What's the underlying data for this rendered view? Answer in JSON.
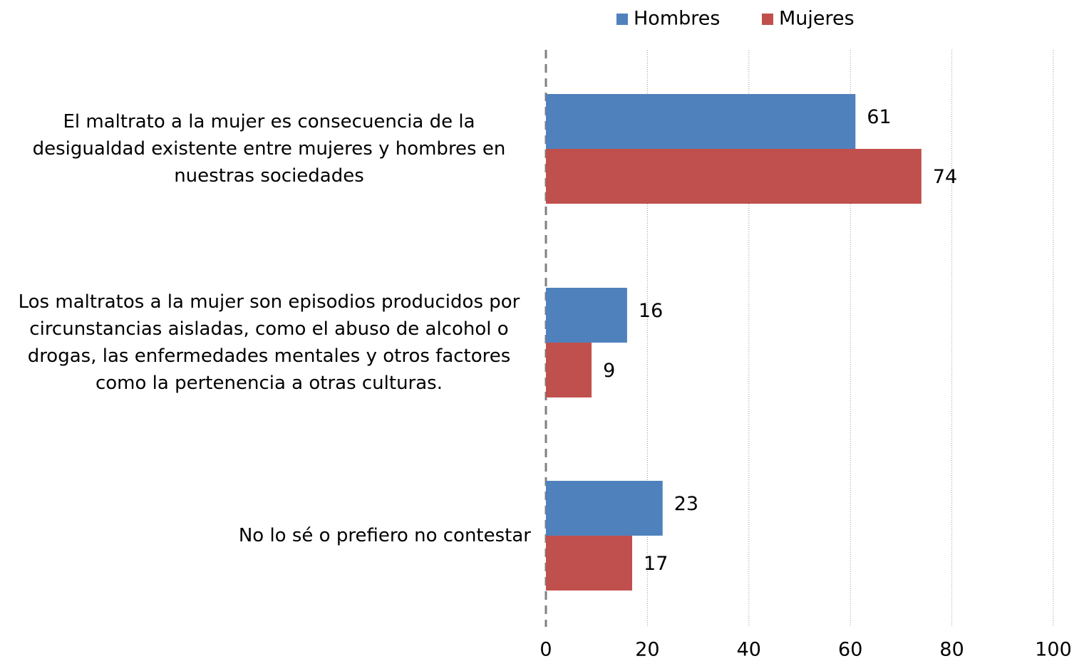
{
  "chart_data": {
    "type": "hbar",
    "categories": [
      "El maltrato a la mujer es consecuencia de la desigualdad existente entre mujeres y hombres en nuestras sociedades",
      "Los maltratos a la mujer son episodios producidos por  circunstancias aisladas, como el abuso de alcohol o drogas, las enfermedades mentales y otros factores como la pertenencia a otras culturas.",
      "No lo sé o prefiero no contestar"
    ],
    "series": [
      {
        "name": "Hombres",
        "color": "#4f81bd",
        "values": [
          61,
          16,
          23
        ]
      },
      {
        "name": "Mujeres",
        "color": "#c0504d",
        "values": [
          74,
          9,
          17
        ]
      }
    ],
    "xlim": [
      0,
      100
    ],
    "xticks": [
      0,
      20,
      40,
      60,
      80,
      100
    ],
    "grid": true,
    "legend": "top"
  }
}
